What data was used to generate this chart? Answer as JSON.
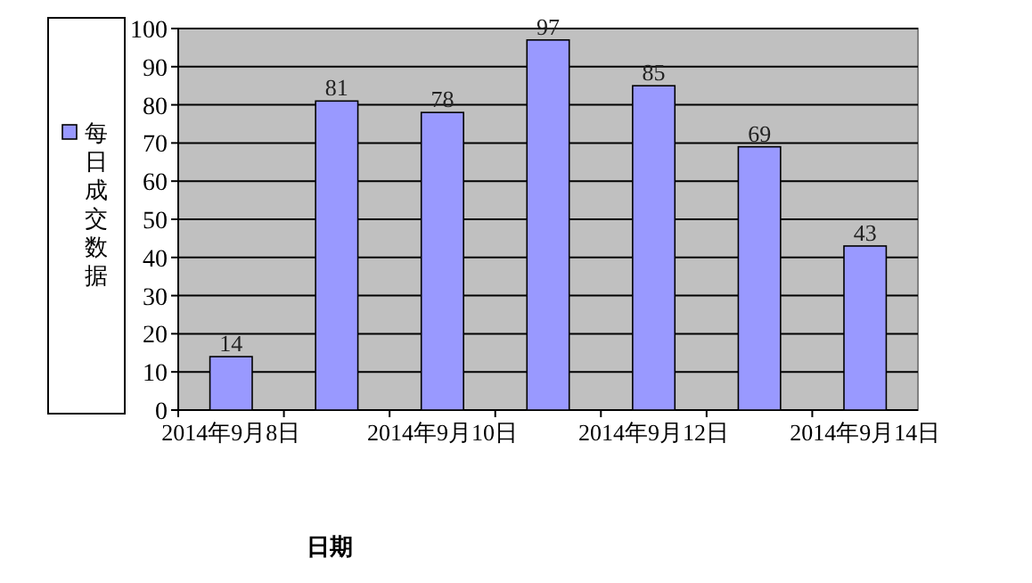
{
  "chart_data": {
    "type": "bar",
    "xlabel": "日期",
    "categories": [
      "2014年9月8日",
      null,
      "2014年9月10日",
      null,
      "2014年9月12日",
      null,
      "2014年9月14日"
    ],
    "series": [
      {
        "name": "每日成交数据",
        "color": "#9999ff",
        "values": [
          14,
          81,
          78,
          97,
          85,
          69,
          43
        ]
      }
    ],
    "ylim": [
      0,
      100
    ],
    "yticks": [
      0,
      10,
      20,
      30,
      40,
      50,
      60,
      70,
      80,
      90,
      100
    ],
    "grid": "y",
    "legend": "left",
    "data_labels": true
  }
}
